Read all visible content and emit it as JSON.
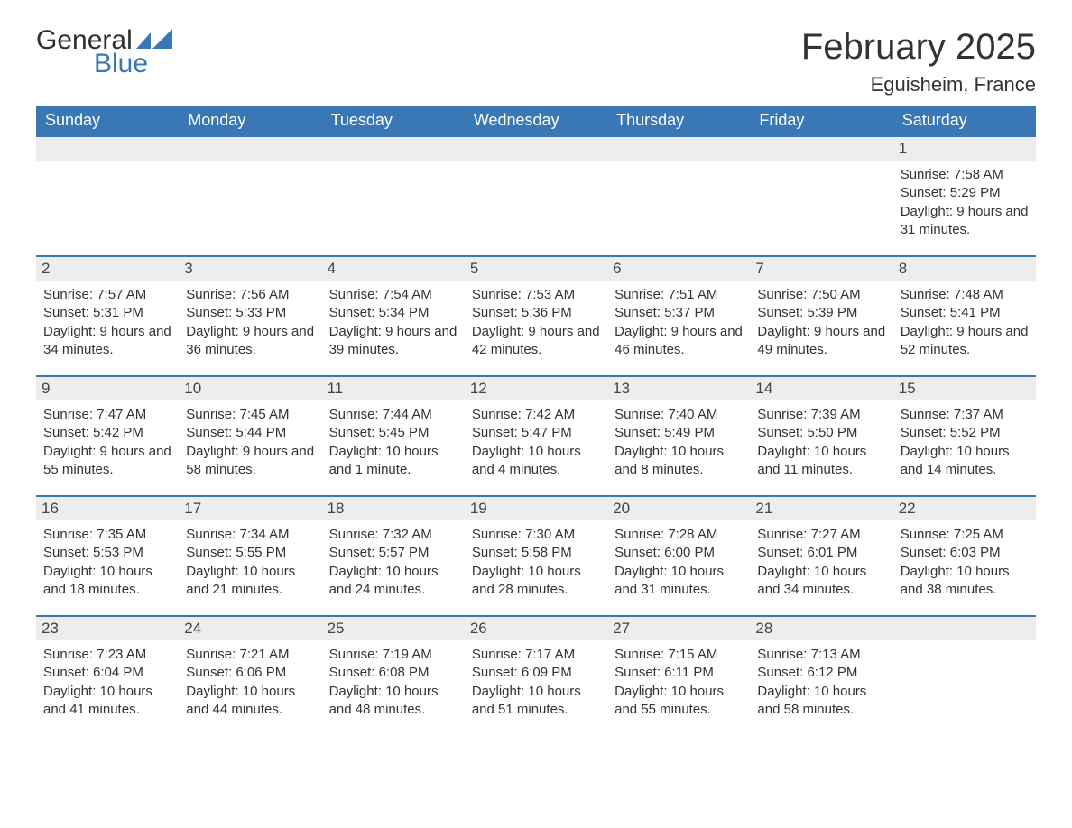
{
  "logo": {
    "text1": "General",
    "text2": "Blue",
    "flag_color": "#3a78b5",
    "text1_color": "#2f2f2f"
  },
  "title": "February 2025",
  "location": "Eguisheim, France",
  "colors": {
    "header_bg": "#3a78b5",
    "header_text": "#ffffff",
    "row_divider": "#3a78b5",
    "daynum_bg": "#ededed",
    "body_text": "#333333",
    "page_bg": "#ffffff"
  },
  "typography": {
    "title_fontsize": 40,
    "location_fontsize": 22,
    "header_fontsize": 18,
    "daynum_fontsize": 17,
    "body_fontsize": 15,
    "font_family": "Arial"
  },
  "layout": {
    "columns": 7,
    "rows": 5,
    "first_day_column_index": 6
  },
  "day_headers": [
    "Sunday",
    "Monday",
    "Tuesday",
    "Wednesday",
    "Thursday",
    "Friday",
    "Saturday"
  ],
  "weeks": [
    [
      null,
      null,
      null,
      null,
      null,
      null,
      {
        "n": "1",
        "sunrise": "7:58 AM",
        "sunset": "5:29 PM",
        "daylight": "9 hours and 31 minutes."
      }
    ],
    [
      {
        "n": "2",
        "sunrise": "7:57 AM",
        "sunset": "5:31 PM",
        "daylight": "9 hours and 34 minutes."
      },
      {
        "n": "3",
        "sunrise": "7:56 AM",
        "sunset": "5:33 PM",
        "daylight": "9 hours and 36 minutes."
      },
      {
        "n": "4",
        "sunrise": "7:54 AM",
        "sunset": "5:34 PM",
        "daylight": "9 hours and 39 minutes."
      },
      {
        "n": "5",
        "sunrise": "7:53 AM",
        "sunset": "5:36 PM",
        "daylight": "9 hours and 42 minutes."
      },
      {
        "n": "6",
        "sunrise": "7:51 AM",
        "sunset": "5:37 PM",
        "daylight": "9 hours and 46 minutes."
      },
      {
        "n": "7",
        "sunrise": "7:50 AM",
        "sunset": "5:39 PM",
        "daylight": "9 hours and 49 minutes."
      },
      {
        "n": "8",
        "sunrise": "7:48 AM",
        "sunset": "5:41 PM",
        "daylight": "9 hours and 52 minutes."
      }
    ],
    [
      {
        "n": "9",
        "sunrise": "7:47 AM",
        "sunset": "5:42 PM",
        "daylight": "9 hours and 55 minutes."
      },
      {
        "n": "10",
        "sunrise": "7:45 AM",
        "sunset": "5:44 PM",
        "daylight": "9 hours and 58 minutes."
      },
      {
        "n": "11",
        "sunrise": "7:44 AM",
        "sunset": "5:45 PM",
        "daylight": "10 hours and 1 minute."
      },
      {
        "n": "12",
        "sunrise": "7:42 AM",
        "sunset": "5:47 PM",
        "daylight": "10 hours and 4 minutes."
      },
      {
        "n": "13",
        "sunrise": "7:40 AM",
        "sunset": "5:49 PM",
        "daylight": "10 hours and 8 minutes."
      },
      {
        "n": "14",
        "sunrise": "7:39 AM",
        "sunset": "5:50 PM",
        "daylight": "10 hours and 11 minutes."
      },
      {
        "n": "15",
        "sunrise": "7:37 AM",
        "sunset": "5:52 PM",
        "daylight": "10 hours and 14 minutes."
      }
    ],
    [
      {
        "n": "16",
        "sunrise": "7:35 AM",
        "sunset": "5:53 PM",
        "daylight": "10 hours and 18 minutes."
      },
      {
        "n": "17",
        "sunrise": "7:34 AM",
        "sunset": "5:55 PM",
        "daylight": "10 hours and 21 minutes."
      },
      {
        "n": "18",
        "sunrise": "7:32 AM",
        "sunset": "5:57 PM",
        "daylight": "10 hours and 24 minutes."
      },
      {
        "n": "19",
        "sunrise": "7:30 AM",
        "sunset": "5:58 PM",
        "daylight": "10 hours and 28 minutes."
      },
      {
        "n": "20",
        "sunrise": "7:28 AM",
        "sunset": "6:00 PM",
        "daylight": "10 hours and 31 minutes."
      },
      {
        "n": "21",
        "sunrise": "7:27 AM",
        "sunset": "6:01 PM",
        "daylight": "10 hours and 34 minutes."
      },
      {
        "n": "22",
        "sunrise": "7:25 AM",
        "sunset": "6:03 PM",
        "daylight": "10 hours and 38 minutes."
      }
    ],
    [
      {
        "n": "23",
        "sunrise": "7:23 AM",
        "sunset": "6:04 PM",
        "daylight": "10 hours and 41 minutes."
      },
      {
        "n": "24",
        "sunrise": "7:21 AM",
        "sunset": "6:06 PM",
        "daylight": "10 hours and 44 minutes."
      },
      {
        "n": "25",
        "sunrise": "7:19 AM",
        "sunset": "6:08 PM",
        "daylight": "10 hours and 48 minutes."
      },
      {
        "n": "26",
        "sunrise": "7:17 AM",
        "sunset": "6:09 PM",
        "daylight": "10 hours and 51 minutes."
      },
      {
        "n": "27",
        "sunrise": "7:15 AM",
        "sunset": "6:11 PM",
        "daylight": "10 hours and 55 minutes."
      },
      {
        "n": "28",
        "sunrise": "7:13 AM",
        "sunset": "6:12 PM",
        "daylight": "10 hours and 58 minutes."
      },
      null
    ]
  ],
  "labels": {
    "sunrise": "Sunrise:",
    "sunset": "Sunset:",
    "daylight": "Daylight:"
  }
}
